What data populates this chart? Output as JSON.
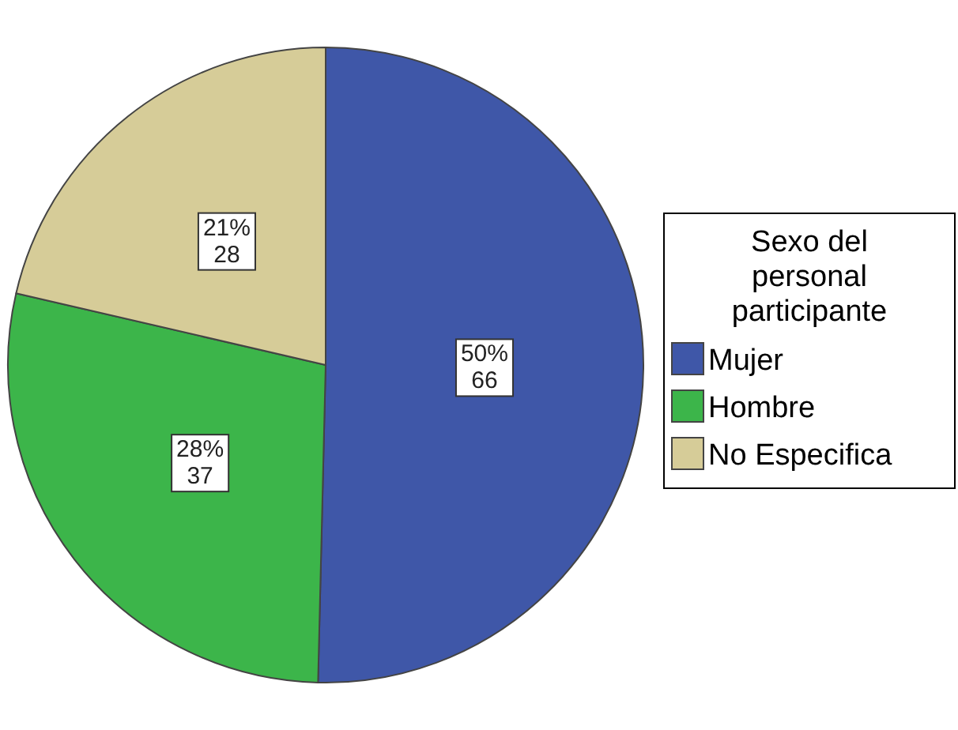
{
  "chart_data": {
    "type": "pie",
    "legend_title": "Sexo del personal participante",
    "legend": "right",
    "categories": [
      "Mujer",
      "Hombre",
      "No Especifica"
    ],
    "values": [
      66,
      37,
      28
    ],
    "colors": [
      "#3f57a8",
      "#3cb54a",
      "#d6cc98"
    ],
    "value_labels": [
      "50%\n66",
      "28%\n37",
      "21%\n28"
    ]
  }
}
